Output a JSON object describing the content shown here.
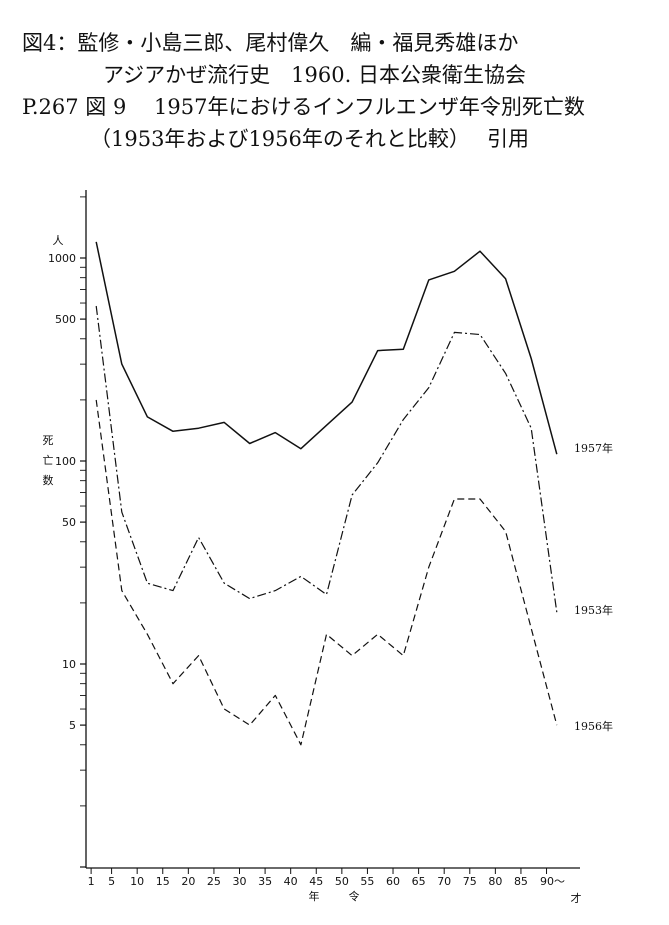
{
  "header": {
    "line1": "図4：監修・小島三郎、尾村偉久　編・福見秀雄ほか",
    "line2": "アジアかぜ流行史　1960.  日本公衆衛生協会",
    "line3": "P.267 図 9　 1957年におけるインフルエンザ年令別死亡数",
    "line4": "（1953年および1956年のそれと比較）　 引用"
  },
  "chart_data": {
    "type": "line",
    "yscale": "log",
    "ylim": [
      1,
      2000
    ],
    "xlim": [
      0,
      95
    ],
    "ylabel": "死亡数",
    "yunit": "人",
    "xlabel": "年令",
    "xunit": "才",
    "x_ticks": [
      1,
      5,
      10,
      15,
      20,
      25,
      30,
      35,
      40,
      45,
      50,
      55,
      60,
      65,
      70,
      75,
      80,
      85,
      "90～"
    ],
    "y_tick_labels": [
      {
        "value": 1000,
        "label": "1000"
      },
      {
        "value": 500,
        "label": "500"
      },
      {
        "value": 100,
        "label": "100"
      },
      {
        "value": 50,
        "label": "50"
      },
      {
        "value": 10,
        "label": "10"
      },
      {
        "value": 5,
        "label": "5"
      }
    ],
    "series": [
      {
        "name": "1957年",
        "style": "solid",
        "x": [
          2,
          7,
          12,
          17,
          22,
          27,
          32,
          37,
          42,
          47,
          52,
          57,
          62,
          67,
          72,
          77,
          82,
          87,
          92
        ],
        "y": [
          1200,
          300,
          165,
          140,
          145,
          155,
          122,
          138,
          115,
          150,
          195,
          350,
          355,
          780,
          860,
          1080,
          790,
          320,
          108
        ]
      },
      {
        "name": "1953年",
        "style": "dash-dot",
        "x": [
          2,
          7,
          12,
          17,
          22,
          27,
          32,
          37,
          42,
          47,
          52,
          57,
          62,
          67,
          72,
          77,
          82,
          87,
          92
        ],
        "y": [
          580,
          56,
          25,
          23,
          42,
          25,
          21,
          23,
          27,
          22,
          68,
          98,
          160,
          230,
          430,
          420,
          270,
          145,
          18
        ]
      },
      {
        "name": "1956年",
        "style": "dashed",
        "x": [
          2,
          7,
          12,
          17,
          22,
          27,
          32,
          37,
          42,
          47,
          52,
          57,
          62,
          67,
          72,
          77,
          82,
          87,
          92
        ],
        "y": [
          200,
          23,
          14,
          8,
          11,
          6,
          5,
          7,
          4,
          14,
          11,
          14,
          11,
          30,
          65,
          65,
          45,
          15,
          5
        ]
      }
    ]
  }
}
